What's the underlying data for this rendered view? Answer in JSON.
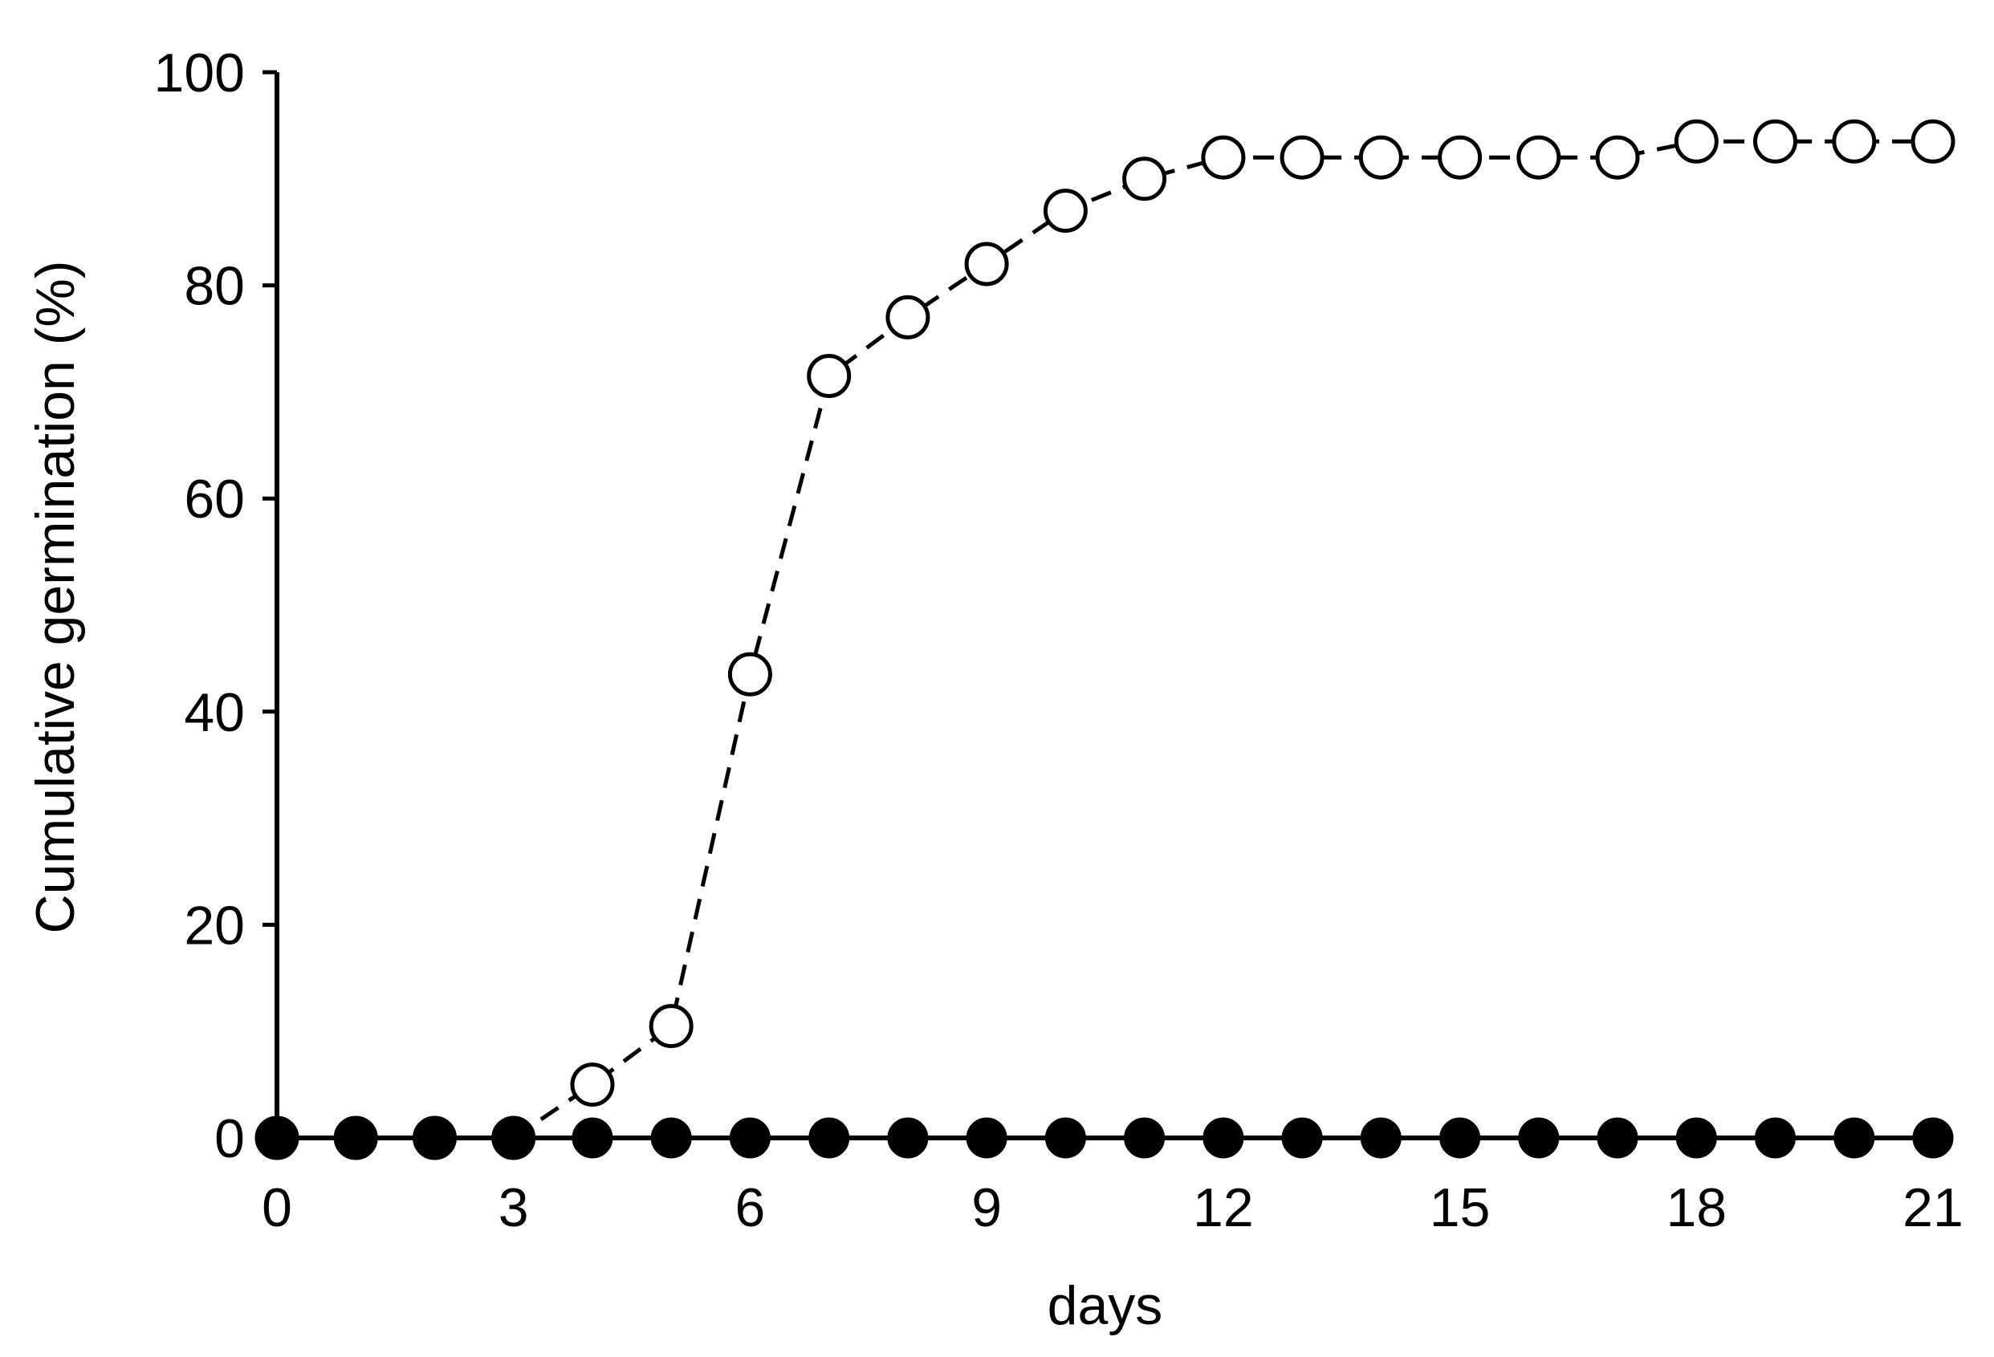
{
  "chart_data": {
    "type": "line",
    "title": "",
    "xlabel": "days",
    "ylabel": "Cumulative germination (%)",
    "xlim": [
      0,
      21
    ],
    "ylim": [
      0,
      100
    ],
    "x_ticks": [
      "0",
      "3",
      "6",
      "9",
      "12",
      "15",
      "18",
      "21"
    ],
    "y_ticks": [
      "0",
      "20",
      "40",
      "60",
      "80",
      "100"
    ],
    "grid": false,
    "legend": "none",
    "x": [
      0,
      1,
      2,
      3,
      4,
      5,
      6,
      7,
      8,
      9,
      10,
      11,
      12,
      13,
      14,
      15,
      16,
      17,
      18,
      19,
      20,
      21
    ],
    "series": [
      {
        "marker": "open-circle",
        "line": "dashed",
        "color": "#000000",
        "values": [
          0,
          0,
          0,
          0,
          5,
          10.5,
          43.5,
          71.5,
          77,
          82,
          87,
          90,
          92,
          92,
          92,
          92,
          92,
          92,
          93.5,
          93.5,
          93.5,
          93.5
        ]
      },
      {
        "marker": "filled-circle",
        "line": "solid",
        "color": "#000000",
        "values": [
          0,
          0,
          0,
          0,
          0,
          0,
          0,
          0,
          0,
          0,
          0,
          0,
          0,
          0,
          0,
          0,
          0,
          0,
          0,
          0,
          0,
          0
        ]
      }
    ]
  }
}
